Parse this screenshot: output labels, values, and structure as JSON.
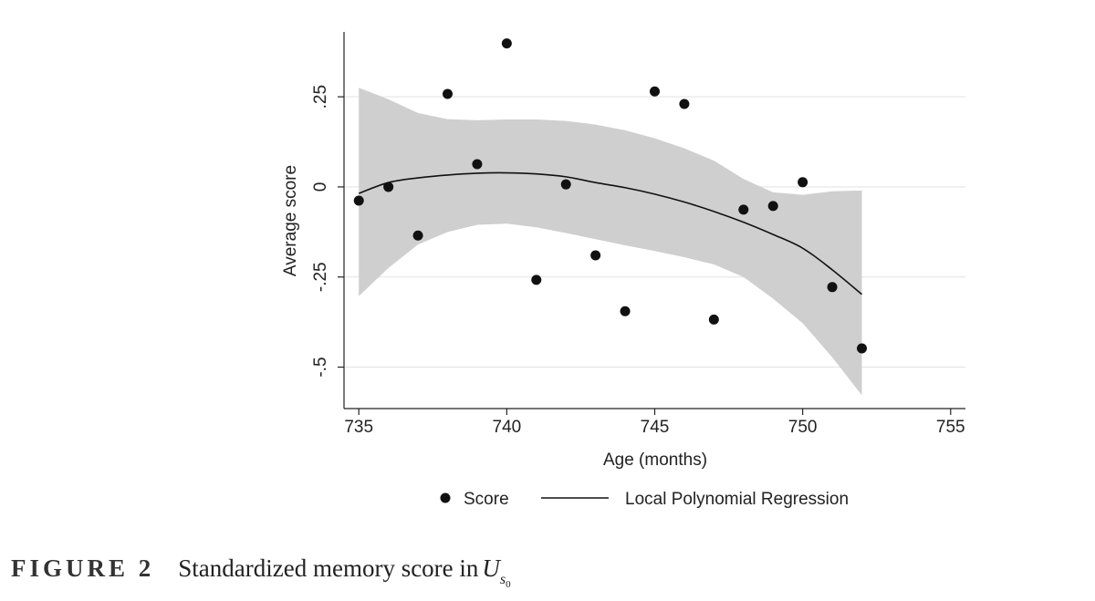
{
  "chart_data": {
    "type": "scatter",
    "xlabel": "Age (months)",
    "ylabel": "Average score",
    "xlim": [
      734.5,
      755.5
    ],
    "ylim": [
      -0.615,
      0.43
    ],
    "x_ticks": [
      735,
      740,
      745,
      750,
      755
    ],
    "x_tick_labels": [
      "735",
      "740",
      "745",
      "750",
      "755"
    ],
    "y_ticks": [
      -0.5,
      -0.25,
      0,
      0.25
    ],
    "y_tick_labels": [
      "-.5",
      "-.25",
      "0",
      ".25"
    ],
    "grid": "horizontal",
    "legend_placement": "bottom",
    "colors": {
      "points": "#111111",
      "line": "#111111",
      "band": "#cfcfcf",
      "grid": "#e2e2e2",
      "axis": "#222222"
    },
    "series": [
      {
        "name": "Score",
        "kind": "scatter",
        "x": [
          735,
          736,
          737,
          738,
          739,
          740,
          741,
          742,
          743,
          744,
          745,
          746,
          747,
          748,
          749,
          750,
          751,
          752
        ],
        "y": [
          -0.038,
          0.0,
          -0.135,
          0.258,
          0.063,
          0.398,
          -0.258,
          0.007,
          -0.19,
          -0.345,
          0.265,
          0.23,
          -0.368,
          -0.063,
          -0.053,
          0.013,
          -0.278,
          -0.448
        ]
      },
      {
        "name": "Local Polynomial Regression",
        "kind": "line",
        "x": [
          735,
          736,
          737,
          738,
          739,
          740,
          741,
          742,
          743,
          744,
          745,
          746,
          747,
          748,
          749,
          750,
          751,
          752
        ],
        "y": [
          -0.018,
          0.012,
          0.025,
          0.033,
          0.038,
          0.039,
          0.036,
          0.028,
          0.012,
          -0.002,
          -0.02,
          -0.042,
          -0.068,
          -0.098,
          -0.132,
          -0.17,
          -0.23,
          -0.298
        ],
        "band_lower": [
          -0.303,
          -0.225,
          -0.16,
          -0.125,
          -0.105,
          -0.102,
          -0.112,
          -0.128,
          -0.145,
          -0.162,
          -0.178,
          -0.195,
          -0.215,
          -0.25,
          -0.31,
          -0.378,
          -0.473,
          -0.578
        ],
        "band_upper": [
          0.275,
          0.243,
          0.205,
          0.188,
          0.185,
          0.187,
          0.187,
          0.183,
          0.173,
          0.157,
          0.135,
          0.107,
          0.073,
          0.022,
          -0.015,
          -0.022,
          -0.012,
          -0.01
        ]
      }
    ]
  },
  "caption": {
    "label": "FIGURE 2",
    "text": "Standardized memory score in",
    "symbol": "U",
    "subscript": "s",
    "subsubscript": "0"
  }
}
